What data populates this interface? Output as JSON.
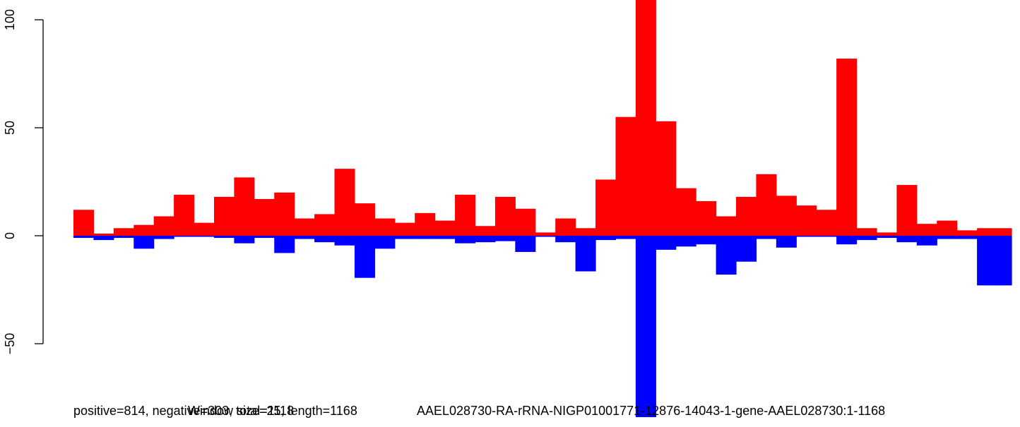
{
  "chart_data": {
    "type": "bar",
    "x": [
      0,
      25,
      50,
      75,
      100,
      125,
      150,
      175,
      200,
      225,
      250,
      275,
      300,
      325,
      350,
      375,
      400,
      425,
      450,
      475,
      500,
      525,
      550,
      575,
      600,
      625,
      650,
      675,
      700,
      725,
      750,
      775,
      800,
      825,
      850,
      875,
      900,
      925,
      950,
      975,
      1000,
      1025,
      1050,
      1075,
      1100,
      1125,
      1150
    ],
    "x_range": [
      0,
      1168
    ],
    "series": [
      {
        "color": "#ff0000",
        "values": [
          12,
          1,
          3.5,
          5,
          9,
          19,
          6,
          18,
          27,
          17,
          20,
          8,
          10,
          31,
          15,
          8,
          6,
          10.5,
          7,
          19,
          4.5,
          18,
          12.5,
          1.5,
          8,
          3.5,
          26,
          55,
          112,
          53,
          22,
          16,
          9,
          18,
          28.5,
          18.5,
          14,
          12,
          82,
          3.5,
          1.5,
          23.5,
          5.5,
          7,
          2.5,
          3.5,
          3.5
        ]
      },
      {
        "color": "#0000ff",
        "values": [
          -1,
          -2,
          -1,
          -6,
          -1.5,
          -0.5,
          -0.5,
          -1,
          -3.5,
          -1,
          -8,
          -1.5,
          -3,
          -4.5,
          -19.5,
          -6,
          -1.5,
          -1.5,
          -1.5,
          -3.5,
          -3,
          -2.5,
          -7.5,
          -0.5,
          -3,
          -16.5,
          -2,
          -1.5,
          -84,
          -6.5,
          -5,
          -4,
          -18,
          -12,
          -1.5,
          -5.5,
          -0.5,
          -0.5,
          -4,
          -2,
          -1,
          -3,
          -4.5,
          -1.5,
          -1.5,
          -23,
          -23
        ]
      }
    ],
    "ylim": [
      -85,
      112
    ],
    "yticks": [
      "-50",
      "0",
      "50",
      "100"
    ],
    "caption_parts": [
      "positive=814, negative=303, total=1118",
      "Window size=25, length=1168",
      "AAEL028730-RA-rRNA-NIGP01001771-12876-14043-1-gene-AAEL028730:1-1168"
    ]
  }
}
